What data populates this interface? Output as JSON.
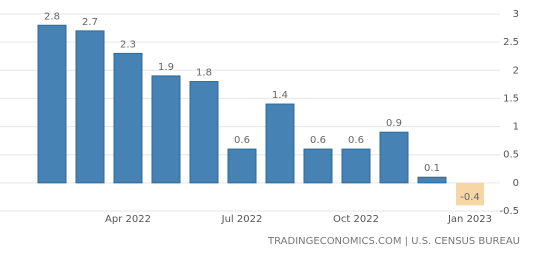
{
  "chart_data": {
    "type": "bar",
    "categories": [
      null,
      null,
      "Apr 2022",
      null,
      null,
      "Jul 2022",
      null,
      null,
      "Oct 2022",
      null,
      null,
      "Jan 2023"
    ],
    "values": [
      2.8,
      2.7,
      2.3,
      1.9,
      1.8,
      0.6,
      1.4,
      0.6,
      0.6,
      0.9,
      0.1,
      -0.4
    ],
    "color": "#4682b4",
    "negative_color": "#f7d6a6",
    "ylim": [
      -0.5,
      3
    ],
    "yticks": [
      3,
      2.5,
      2,
      1.5,
      1,
      0.5,
      0,
      -0.5
    ],
    "grid": true,
    "source": "TRADINGECONOMICS.COM | U.S. CENSUS BUREAU"
  }
}
